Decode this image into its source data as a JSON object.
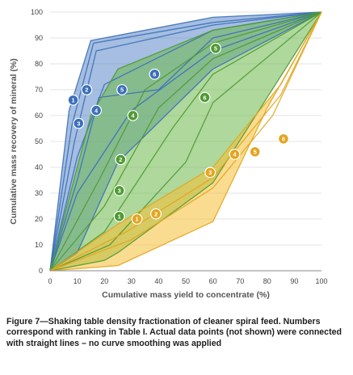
{
  "chart_data": {
    "type": "area",
    "xlabel": "Cumulative mass yield to concentrate (%)",
    "ylabel": "Cumulative mass recovery of mineral (%)",
    "xlim": [
      0,
      100
    ],
    "ylim": [
      0,
      100
    ],
    "x_ticks": [
      "0",
      "10",
      "20",
      "30",
      "40",
      "50",
      "60",
      "70",
      "80",
      "90",
      "100"
    ],
    "y_ticks": [
      "0",
      "10",
      "20",
      "30",
      "40",
      "50",
      "60",
      "70",
      "80",
      "90",
      "100"
    ],
    "grid": "horizontal",
    "colors": {
      "blue": "#5b88c8",
      "green": "#6db84b",
      "yellow": "#f5c034",
      "blue_line": "#3b6fb8",
      "green_line": "#4f9a34",
      "yellow_line": "#e2a51e"
    },
    "bands": [
      {
        "color": "blue",
        "upper": [
          [
            0,
            0
          ],
          [
            7,
            62
          ],
          [
            15,
            89
          ],
          [
            60,
            98
          ],
          [
            100,
            100
          ]
        ],
        "lower": [
          [
            0,
            0
          ],
          [
            10,
            7
          ],
          [
            25,
            42
          ],
          [
            60,
            78
          ],
          [
            100,
            100
          ]
        ]
      },
      {
        "color": "green",
        "upper": [
          [
            0,
            0
          ],
          [
            15,
            60
          ],
          [
            25,
            78
          ],
          [
            60,
            93
          ],
          [
            100,
            100
          ]
        ],
        "lower": [
          [
            0,
            0
          ],
          [
            20,
            4
          ],
          [
            25,
            7
          ],
          [
            60,
            34
          ],
          [
            100,
            100
          ]
        ]
      },
      {
        "color": "yellow",
        "upper": [
          [
            0,
            0
          ],
          [
            25,
            18
          ],
          [
            60,
            40
          ],
          [
            85,
            72
          ],
          [
            100,
            100
          ]
        ],
        "lower": [
          [
            0,
            0
          ],
          [
            25,
            2
          ],
          [
            60,
            19
          ],
          [
            80,
            63
          ],
          [
            100,
            100
          ]
        ]
      }
    ],
    "lines": [
      {
        "color": "blue",
        "points": [
          [
            0,
            0
          ],
          [
            7,
            62
          ],
          [
            15,
            89
          ],
          [
            60,
            98
          ],
          [
            100,
            100
          ]
        ]
      },
      {
        "color": "blue",
        "points": [
          [
            0,
            0
          ],
          [
            8,
            56
          ],
          [
            16,
            88
          ],
          [
            60,
            96
          ],
          [
            100,
            100
          ]
        ]
      },
      {
        "color": "blue",
        "points": [
          [
            0,
            0
          ],
          [
            9,
            50
          ],
          [
            17,
            85
          ],
          [
            60,
            95
          ],
          [
            100,
            100
          ]
        ]
      },
      {
        "color": "blue",
        "points": [
          [
            0,
            0
          ],
          [
            10,
            44
          ],
          [
            20,
            72
          ],
          [
            60,
            93
          ],
          [
            100,
            100
          ]
        ]
      },
      {
        "color": "blue",
        "points": [
          [
            0,
            0
          ],
          [
            10,
            35
          ],
          [
            18,
            67
          ],
          [
            40,
            70
          ],
          [
            60,
            90
          ],
          [
            100,
            100
          ]
        ]
      },
      {
        "color": "blue",
        "points": [
          [
            0,
            0
          ],
          [
            10,
            30
          ],
          [
            30,
            62
          ],
          [
            60,
            85
          ],
          [
            100,
            100
          ]
        ]
      },
      {
        "color": "blue",
        "points": [
          [
            0,
            0
          ],
          [
            10,
            7
          ],
          [
            25,
            42
          ],
          [
            60,
            78
          ],
          [
            100,
            100
          ]
        ]
      },
      {
        "color": "green",
        "points": [
          [
            0,
            0
          ],
          [
            15,
            60
          ],
          [
            25,
            78
          ],
          [
            60,
            93
          ],
          [
            100,
            100
          ]
        ]
      },
      {
        "color": "green",
        "points": [
          [
            0,
            0
          ],
          [
            18,
            35
          ],
          [
            35,
            70
          ],
          [
            60,
            88
          ],
          [
            100,
            100
          ]
        ]
      },
      {
        "color": "green",
        "points": [
          [
            0,
            0
          ],
          [
            20,
            25
          ],
          [
            40,
            63
          ],
          [
            60,
            82
          ],
          [
            100,
            100
          ]
        ]
      },
      {
        "color": "green",
        "points": [
          [
            0,
            0
          ],
          [
            20,
            15
          ],
          [
            45,
            55
          ],
          [
            60,
            76
          ],
          [
            100,
            100
          ]
        ]
      },
      {
        "color": "green",
        "points": [
          [
            0,
            0
          ],
          [
            22,
            10
          ],
          [
            50,
            42
          ],
          [
            60,
            65
          ],
          [
            100,
            100
          ]
        ]
      },
      {
        "color": "green",
        "points": [
          [
            0,
            0
          ],
          [
            20,
            4
          ],
          [
            25,
            7
          ],
          [
            60,
            34
          ],
          [
            100,
            100
          ]
        ]
      },
      {
        "color": "yellow",
        "points": [
          [
            0,
            0
          ],
          [
            25,
            18
          ],
          [
            60,
            40
          ],
          [
            85,
            72
          ],
          [
            100,
            100
          ]
        ]
      },
      {
        "color": "yellow",
        "points": [
          [
            0,
            0
          ],
          [
            28,
            15
          ],
          [
            60,
            36
          ],
          [
            85,
            68
          ],
          [
            100,
            100
          ]
        ]
      },
      {
        "color": "yellow",
        "points": [
          [
            0,
            0
          ],
          [
            30,
            12
          ],
          [
            60,
            32
          ],
          [
            82,
            60
          ],
          [
            100,
            100
          ]
        ]
      },
      {
        "color": "yellow",
        "points": [
          [
            0,
            0
          ],
          [
            25,
            2
          ],
          [
            60,
            19
          ],
          [
            80,
            63
          ],
          [
            100,
            100
          ]
        ]
      }
    ],
    "markers": [
      {
        "label": "1",
        "x": 8.5,
        "y": 66,
        "color": "blue"
      },
      {
        "label": "2",
        "x": 13.5,
        "y": 70,
        "color": "blue"
      },
      {
        "label": "3",
        "x": 10.5,
        "y": 57,
        "color": "blue"
      },
      {
        "label": "4",
        "x": 17,
        "y": 62,
        "color": "blue"
      },
      {
        "label": "5",
        "x": 26.5,
        "y": 70,
        "color": "blue"
      },
      {
        "label": "6",
        "x": 38.5,
        "y": 76,
        "color": "blue"
      },
      {
        "label": "1",
        "x": 25.5,
        "y": 21,
        "color": "green"
      },
      {
        "label": "2",
        "x": 26,
        "y": 43,
        "color": "green"
      },
      {
        "label": "3",
        "x": 25.5,
        "y": 31,
        "color": "green"
      },
      {
        "label": "4",
        "x": 30.5,
        "y": 60,
        "color": "green"
      },
      {
        "label": "5",
        "x": 61,
        "y": 86,
        "color": "green"
      },
      {
        "label": "6",
        "x": 57,
        "y": 67,
        "color": "green"
      },
      {
        "label": "1",
        "x": 32,
        "y": 20,
        "color": "yellow"
      },
      {
        "label": "2",
        "x": 39,
        "y": 22,
        "color": "yellow"
      },
      {
        "label": "3",
        "x": 59,
        "y": 38,
        "color": "yellow"
      },
      {
        "label": "4",
        "x": 68,
        "y": 45,
        "color": "yellow"
      },
      {
        "label": "5",
        "x": 75.5,
        "y": 46,
        "color": "yellow"
      },
      {
        "label": "6",
        "x": 86,
        "y": 51,
        "color": "yellow"
      }
    ]
  },
  "caption": "Figure 7—Shaking table density fractionation of cleaner spiral feed. Numbers correspond with ranking in Table I. Actual data points (not shown) were connected with straight lines – no curve smoothing was applied"
}
